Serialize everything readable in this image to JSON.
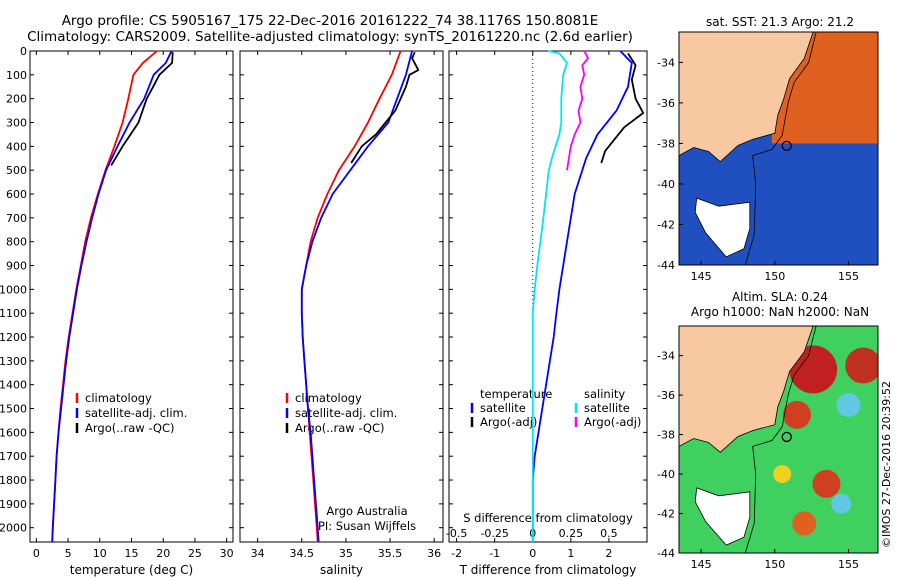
{
  "header": {
    "line1": "Argo profile: CS 5905167_175 22-Dec-2016 20161222_74 38.1176S 150.8081E",
    "line2": "Climatology: CARS2009. Satellite-adjusted climatology: synTS_20161220.nc (2.6d earlier)"
  },
  "colors": {
    "climatology": "#ff0000",
    "satellite": "#0000ff",
    "argo": "#000000",
    "temp_sat_diff": "#00e5ee",
    "sal_argo_diff": "#ff00ff",
    "land": "#f8c8a0",
    "map_bg": "#ffffff"
  },
  "shared_depth_axis": {
    "ticks": [
      0,
      100,
      200,
      300,
      400,
      500,
      600,
      700,
      800,
      900,
      1000,
      1100,
      1200,
      1300,
      1400,
      1500,
      1600,
      1700,
      1800,
      1900,
      2000
    ],
    "range": [
      0,
      2060
    ],
    "reversed": true
  },
  "chart_data": [
    {
      "id": "temperature",
      "type": "line",
      "xlabel": "temperature (deg C)",
      "xlim": [
        -1,
        31
      ],
      "xticks": [
        "0",
        "5",
        "10",
        "15",
        "20",
        "25",
        "30"
      ],
      "xtick_values": [
        0,
        5,
        10,
        15,
        20,
        25,
        30
      ],
      "legend": [
        "climatology",
        "satellite-adj. clim.",
        "Argo(..raw -QC)"
      ],
      "series": [
        {
          "name": "climatology",
          "color": "#ff0000",
          "points": [
            [
              19.0,
              0
            ],
            [
              16.8,
              50
            ],
            [
              15.3,
              100
            ],
            [
              14.5,
              200
            ],
            [
              13.6,
              300
            ],
            [
              12.3,
              400
            ],
            [
              10.9,
              500
            ],
            [
              9.7,
              600
            ],
            [
              8.6,
              700
            ],
            [
              7.7,
              800
            ],
            [
              7.0,
              900
            ],
            [
              6.3,
              1000
            ],
            [
              5.7,
              1100
            ],
            [
              5.1,
              1200
            ],
            [
              4.6,
              1300
            ],
            [
              4.2,
              1400
            ],
            [
              3.8,
              1500
            ],
            [
              3.5,
              1600
            ],
            [
              3.2,
              1700
            ],
            [
              3.0,
              1800
            ],
            [
              2.8,
              1900
            ],
            [
              2.6,
              2000
            ],
            [
              2.5,
              2060
            ]
          ]
        },
        {
          "name": "satellite-adj. clim.",
          "color": "#0000ff",
          "points": [
            [
              21.3,
              0
            ],
            [
              20.4,
              50
            ],
            [
              18.5,
              100
            ],
            [
              17.0,
              200
            ],
            [
              14.7,
              300
            ],
            [
              12.8,
              400
            ],
            [
              11.0,
              500
            ],
            [
              9.8,
              600
            ],
            [
              8.8,
              700
            ],
            [
              7.9,
              800
            ],
            [
              7.1,
              900
            ],
            [
              6.4,
              1000
            ],
            [
              5.8,
              1100
            ],
            [
              5.2,
              1200
            ],
            [
              4.7,
              1300
            ],
            [
              4.3,
              1400
            ],
            [
              3.9,
              1500
            ],
            [
              3.5,
              1600
            ],
            [
              3.2,
              1700
            ],
            [
              3.0,
              1800
            ],
            [
              2.8,
              1900
            ],
            [
              2.6,
              2000
            ],
            [
              2.5,
              2060
            ]
          ]
        },
        {
          "name": "Argo(..raw -QC)",
          "color": "#000000",
          "points": [
            [
              21.5,
              5
            ],
            [
              21.4,
              50
            ],
            [
              19.4,
              100
            ],
            [
              18.4,
              150
            ],
            [
              17.4,
              200
            ],
            [
              16.1,
              300
            ],
            [
              13.6,
              400
            ],
            [
              11.8,
              480
            ]
          ]
        }
      ]
    },
    {
      "id": "salinity",
      "type": "line",
      "xlabel": "salinity",
      "xlim": [
        33.8,
        36.1
      ],
      "xticks": [
        "34",
        "34.5",
        "35",
        "35.5",
        "36"
      ],
      "xtick_values": [
        34,
        34.5,
        35,
        35.5,
        36
      ],
      "legend": [
        "climatology",
        "satellite-adj. clim.",
        "Argo(..raw -QC)"
      ],
      "annotation": [
        "Argo Australia",
        "PI: Susan Wijffels"
      ],
      "series": [
        {
          "name": "climatology",
          "color": "#ff0000",
          "points": [
            [
              35.62,
              0
            ],
            [
              35.52,
              100
            ],
            [
              35.38,
              200
            ],
            [
              35.25,
              300
            ],
            [
              35.1,
              400
            ],
            [
              34.92,
              500
            ],
            [
              34.79,
              600
            ],
            [
              34.68,
              700
            ],
            [
              34.6,
              800
            ],
            [
              34.55,
              900
            ],
            [
              34.5,
              1000
            ],
            [
              34.5,
              1100
            ],
            [
              34.51,
              1200
            ],
            [
              34.53,
              1300
            ],
            [
              34.55,
              1400
            ],
            [
              34.57,
              1500
            ],
            [
              34.59,
              1600
            ],
            [
              34.61,
              1700
            ],
            [
              34.63,
              1800
            ],
            [
              34.65,
              1900
            ],
            [
              34.67,
              2000
            ],
            [
              34.68,
              2060
            ]
          ]
        },
        {
          "name": "satellite-adj. clim.",
          "color": "#0000ff",
          "points": [
            [
              35.75,
              0
            ],
            [
              35.68,
              100
            ],
            [
              35.58,
              200
            ],
            [
              35.48,
              300
            ],
            [
              35.25,
              400
            ],
            [
              35.05,
              500
            ],
            [
              34.85,
              600
            ],
            [
              34.72,
              700
            ],
            [
              34.62,
              800
            ],
            [
              34.55,
              900
            ],
            [
              34.5,
              1000
            ],
            [
              34.5,
              1100
            ],
            [
              34.51,
              1200
            ],
            [
              34.53,
              1300
            ],
            [
              34.55,
              1400
            ],
            [
              34.57,
              1500
            ],
            [
              34.6,
              1600
            ],
            [
              34.62,
              1700
            ],
            [
              34.64,
              1800
            ],
            [
              34.66,
              1900
            ],
            [
              34.68,
              2000
            ],
            [
              34.69,
              2060
            ]
          ]
        },
        {
          "name": "Argo(..raw -QC)",
          "color": "#000000",
          "points": [
            [
              35.78,
              5
            ],
            [
              35.75,
              30
            ],
            [
              35.82,
              80
            ],
            [
              35.72,
              100
            ],
            [
              35.68,
              150
            ],
            [
              35.62,
              200
            ],
            [
              35.56,
              250
            ],
            [
              35.45,
              300
            ],
            [
              35.34,
              350
            ],
            [
              35.18,
              400
            ],
            [
              35.06,
              470
            ]
          ]
        }
      ]
    },
    {
      "id": "difference",
      "type": "line",
      "xlabel_top": "S difference from climatology",
      "xlabel_bottom": "T difference from climatology",
      "xlim": [
        -2.2,
        3.0
      ],
      "xticks": [
        "-2",
        "-1",
        "0",
        "1",
        "2"
      ],
      "xtick_values": [
        -2,
        -1,
        0,
        1,
        2
      ],
      "s_ticks": [
        "-0.5",
        "-0.25",
        "0",
        "0.25",
        "0.5"
      ],
      "s_tick_values": [
        -0.5,
        -0.25,
        0,
        0.25,
        0.5
      ],
      "legend_left_title": "temperature",
      "legend_right_title": "salinity",
      "legend_left": [
        "satellite",
        "Argo(-adj)"
      ],
      "legend_right": [
        "satellite",
        "Argo(-adj)"
      ],
      "series": [
        {
          "name": "satellite",
          "color": "#0000ff",
          "points": [
            [
              2.3,
              0
            ],
            [
              2.6,
              50
            ],
            [
              2.5,
              150
            ],
            [
              2.2,
              250
            ],
            [
              1.7,
              350
            ],
            [
              1.4,
              450
            ],
            [
              1.1,
              600
            ],
            [
              0.9,
              800
            ],
            [
              0.7,
              1000
            ],
            [
              0.62,
              1100
            ],
            [
              0.55,
              1200
            ],
            [
              0.45,
              1300
            ],
            [
              0.35,
              1400
            ],
            [
              0.25,
              1500
            ],
            [
              0.15,
              1600
            ],
            [
              0.05,
              1700
            ],
            [
              0.0,
              1800
            ],
            [
              0.0,
              2060
            ]
          ]
        },
        {
          "name": "Argo(-adj)",
          "color": "#000000",
          "points": [
            [
              2.5,
              10
            ],
            [
              2.7,
              60
            ],
            [
              2.6,
              120
            ],
            [
              2.7,
              200
            ],
            [
              2.9,
              260
            ],
            [
              2.4,
              320
            ],
            [
              2.1,
              380
            ],
            [
              1.9,
              420
            ],
            [
              1.8,
              470
            ]
          ]
        },
        {
          "name": "satellite",
          "color": "#00e5ee",
          "points": [
            [
              0.4,
              0
            ],
            [
              0.7,
              10
            ],
            [
              0.9,
              50
            ],
            [
              0.8,
              100
            ],
            [
              0.75,
              200
            ],
            [
              0.75,
              300
            ],
            [
              0.7,
              350
            ],
            [
              0.6,
              400
            ],
            [
              0.5,
              450
            ],
            [
              0.42,
              500
            ],
            [
              0.35,
              600
            ],
            [
              0.28,
              700
            ],
            [
              0.2,
              800
            ],
            [
              0.12,
              900
            ],
            [
              0.05,
              1000
            ],
            [
              0.0,
              1100
            ],
            [
              0.0,
              2060
            ]
          ]
        },
        {
          "name": "Argo(-adj)",
          "color": "#ff00ff",
          "points": [
            [
              1.35,
              0
            ],
            [
              1.45,
              30
            ],
            [
              1.3,
              60
            ],
            [
              1.35,
              100
            ],
            [
              1.25,
              150
            ],
            [
              1.3,
              200
            ],
            [
              1.2,
              250
            ],
            [
              1.25,
              300
            ],
            [
              1.1,
              350
            ],
            [
              1.0,
              400
            ],
            [
              0.95,
              450
            ],
            [
              0.9,
              500
            ]
          ]
        }
      ]
    }
  ],
  "maps": [
    {
      "id": "sst",
      "title": "sat. SST: 21.3 Argo: 21.2",
      "xticks": [
        "145",
        "150",
        "155"
      ],
      "xtick_values": [
        145,
        150,
        155
      ],
      "yticks": [
        "-34",
        "-36",
        "-38",
        "-40",
        "-42",
        "-44"
      ],
      "ytick_values": [
        -34,
        -36,
        -38,
        -40,
        -42,
        -44
      ],
      "lon": [
        143.5,
        157
      ],
      "lat": [
        -44,
        -32.5
      ],
      "argo_position": [
        150.81,
        -38.12
      ]
    },
    {
      "id": "sla",
      "title": "Altim. SLA: 0.24",
      "subtitle": "Argo h1000: NaN h2000: NaN",
      "xticks": [
        "145",
        "150",
        "155"
      ],
      "xtick_values": [
        145,
        150,
        155
      ],
      "yticks": [
        "-34",
        "-36",
        "-38",
        "-40",
        "-42",
        "-44"
      ],
      "ytick_values": [
        -34,
        -36,
        -38,
        -40,
        -42,
        -44
      ],
      "lon": [
        143.5,
        157
      ],
      "lat": [
        -44,
        -32.5
      ],
      "argo_position": [
        150.81,
        -38.12
      ]
    }
  ],
  "credit": "©IMOS 27-Dec-2016 20:39:52"
}
